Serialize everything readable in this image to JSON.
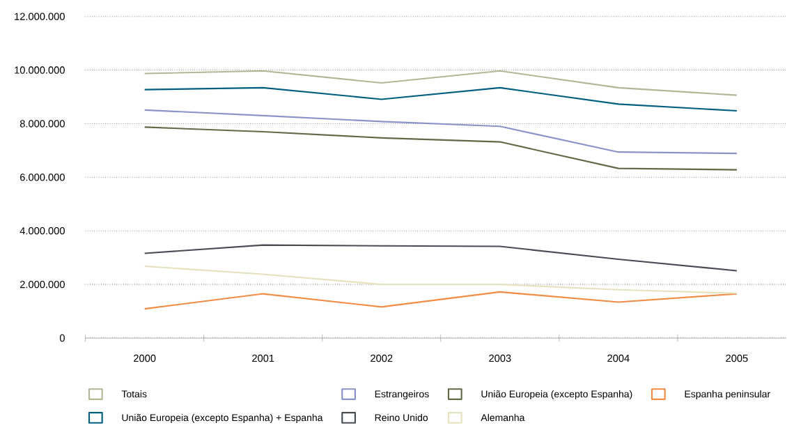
{
  "chart_data": {
    "type": "line",
    "categories": [
      "2000",
      "2001",
      "2002",
      "2003",
      "2004",
      "2005"
    ],
    "ylim": [
      0,
      12000000
    ],
    "yticks": [
      {
        "value": 0,
        "label": "0"
      },
      {
        "value": 2000000,
        "label": "2.000.000"
      },
      {
        "value": 4000000,
        "label": "4.000.000"
      },
      {
        "value": 6000000,
        "label": "6.000.000"
      },
      {
        "value": 8000000,
        "label": "8.000.000"
      },
      {
        "value": 10000000,
        "label": "10.000.000"
      },
      {
        "value": 12000000,
        "label": "12.000.000"
      }
    ],
    "grid": "y",
    "legend": "bottom",
    "marker": "none",
    "line_style": "solid",
    "series": [
      {
        "name": "Totais",
        "color": "#b5b594",
        "values": [
          9870000,
          9970000,
          9520000,
          9970000,
          9340000,
          9060000
        ]
      },
      {
        "name": "Estrangeiros",
        "color": "#8a93c8",
        "values": [
          8510000,
          8300000,
          8080000,
          7900000,
          6940000,
          6890000
        ]
      },
      {
        "name": "União Europeia (excepto Espanha)",
        "color": "#5e6b44",
        "values": [
          7870000,
          7700000,
          7470000,
          7320000,
          6330000,
          6280000
        ]
      },
      {
        "name": "Espanha peninsular",
        "color": "#f28c45",
        "values": [
          1090000,
          1650000,
          1160000,
          1720000,
          1340000,
          1650000
        ]
      },
      {
        "name": "União Europeia (excepto Espanha) + Espanha",
        "color": "#005f7f",
        "values": [
          9270000,
          9340000,
          8910000,
          9340000,
          8730000,
          8480000
        ]
      },
      {
        "name": "Reino Unido",
        "color": "#474c55",
        "values": [
          3160000,
          3470000,
          3440000,
          3420000,
          2940000,
          2510000
        ]
      },
      {
        "name": "Alemanha",
        "color": "#e5e2bd",
        "values": [
          2680000,
          2380000,
          2000000,
          2000000,
          1800000,
          1670000
        ]
      }
    ]
  }
}
